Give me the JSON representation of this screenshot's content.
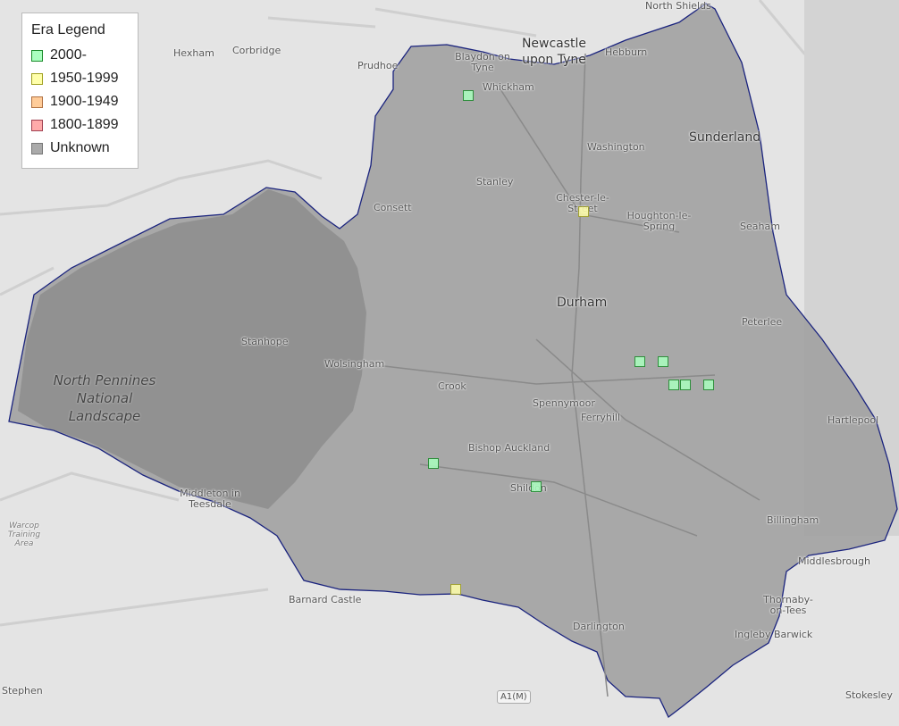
{
  "legend": {
    "title": "Era Legend",
    "items": [
      {
        "label": "2000-",
        "fill": "#aaffbf",
        "stroke": "#1a8a2a"
      },
      {
        "label": "1950-1999",
        "fill": "#ffffaa",
        "stroke": "#a0a020"
      },
      {
        "label": "1900-1949",
        "fill": "#ffcc99",
        "stroke": "#b07040"
      },
      {
        "label": "1800-1899",
        "fill": "#ffaaaa",
        "stroke": "#a04050"
      },
      {
        "label": "Unknown",
        "fill": "#aaaaaa",
        "stroke": "#777777"
      }
    ]
  },
  "colors": {
    "boundary": "#1a237e",
    "county_fill": "#9e9e9e",
    "background": "#e4e4e4"
  },
  "places": [
    "North Shields",
    "Newcastle upon Tyne",
    "Blaydon on Tyne",
    "Whickham",
    "Hebburn",
    "Hexham",
    "Corbridge",
    "Prudhoe",
    "Washington",
    "Sunderland",
    "Stanley",
    "Chester-le-Street",
    "Houghton-le-Spring",
    "Consett",
    "Seaham",
    "Durham",
    "Peterlee",
    "Stanhope",
    "Wolsingham",
    "Crook",
    "Spennymoor",
    "Ferryhill",
    "Hartlepool",
    "Bishop Auckland",
    "Shildon",
    "Middleton in Teesdale",
    "Billingham",
    "Middlesbrough",
    "Barnard Castle",
    "Thornaby-on-Tees",
    "Darlington",
    "Ingleby Barwick",
    "Stokesley",
    "Stephen"
  ],
  "park_label": "North Pennines National Landscape",
  "warcop_label": "Warcop Training Area",
  "road_label": "A1(M)",
  "markers": [
    {
      "era": "2000-",
      "place": "Whickham"
    },
    {
      "era": "1950-1999",
      "place": "Chester-le-Street"
    },
    {
      "era": "2000-",
      "place": "East of Durham"
    },
    {
      "era": "2000-",
      "place": "East of Durham"
    },
    {
      "era": "2000-",
      "place": "East of Durham"
    },
    {
      "era": "2000-",
      "place": "East of Durham"
    },
    {
      "era": "2000-",
      "place": "East of Durham"
    },
    {
      "era": "2000-",
      "place": "West of Bishop Auckland"
    },
    {
      "era": "2000-",
      "place": "Shildon"
    },
    {
      "era": "1950-1999",
      "place": "South of Barnard Castle"
    }
  ]
}
